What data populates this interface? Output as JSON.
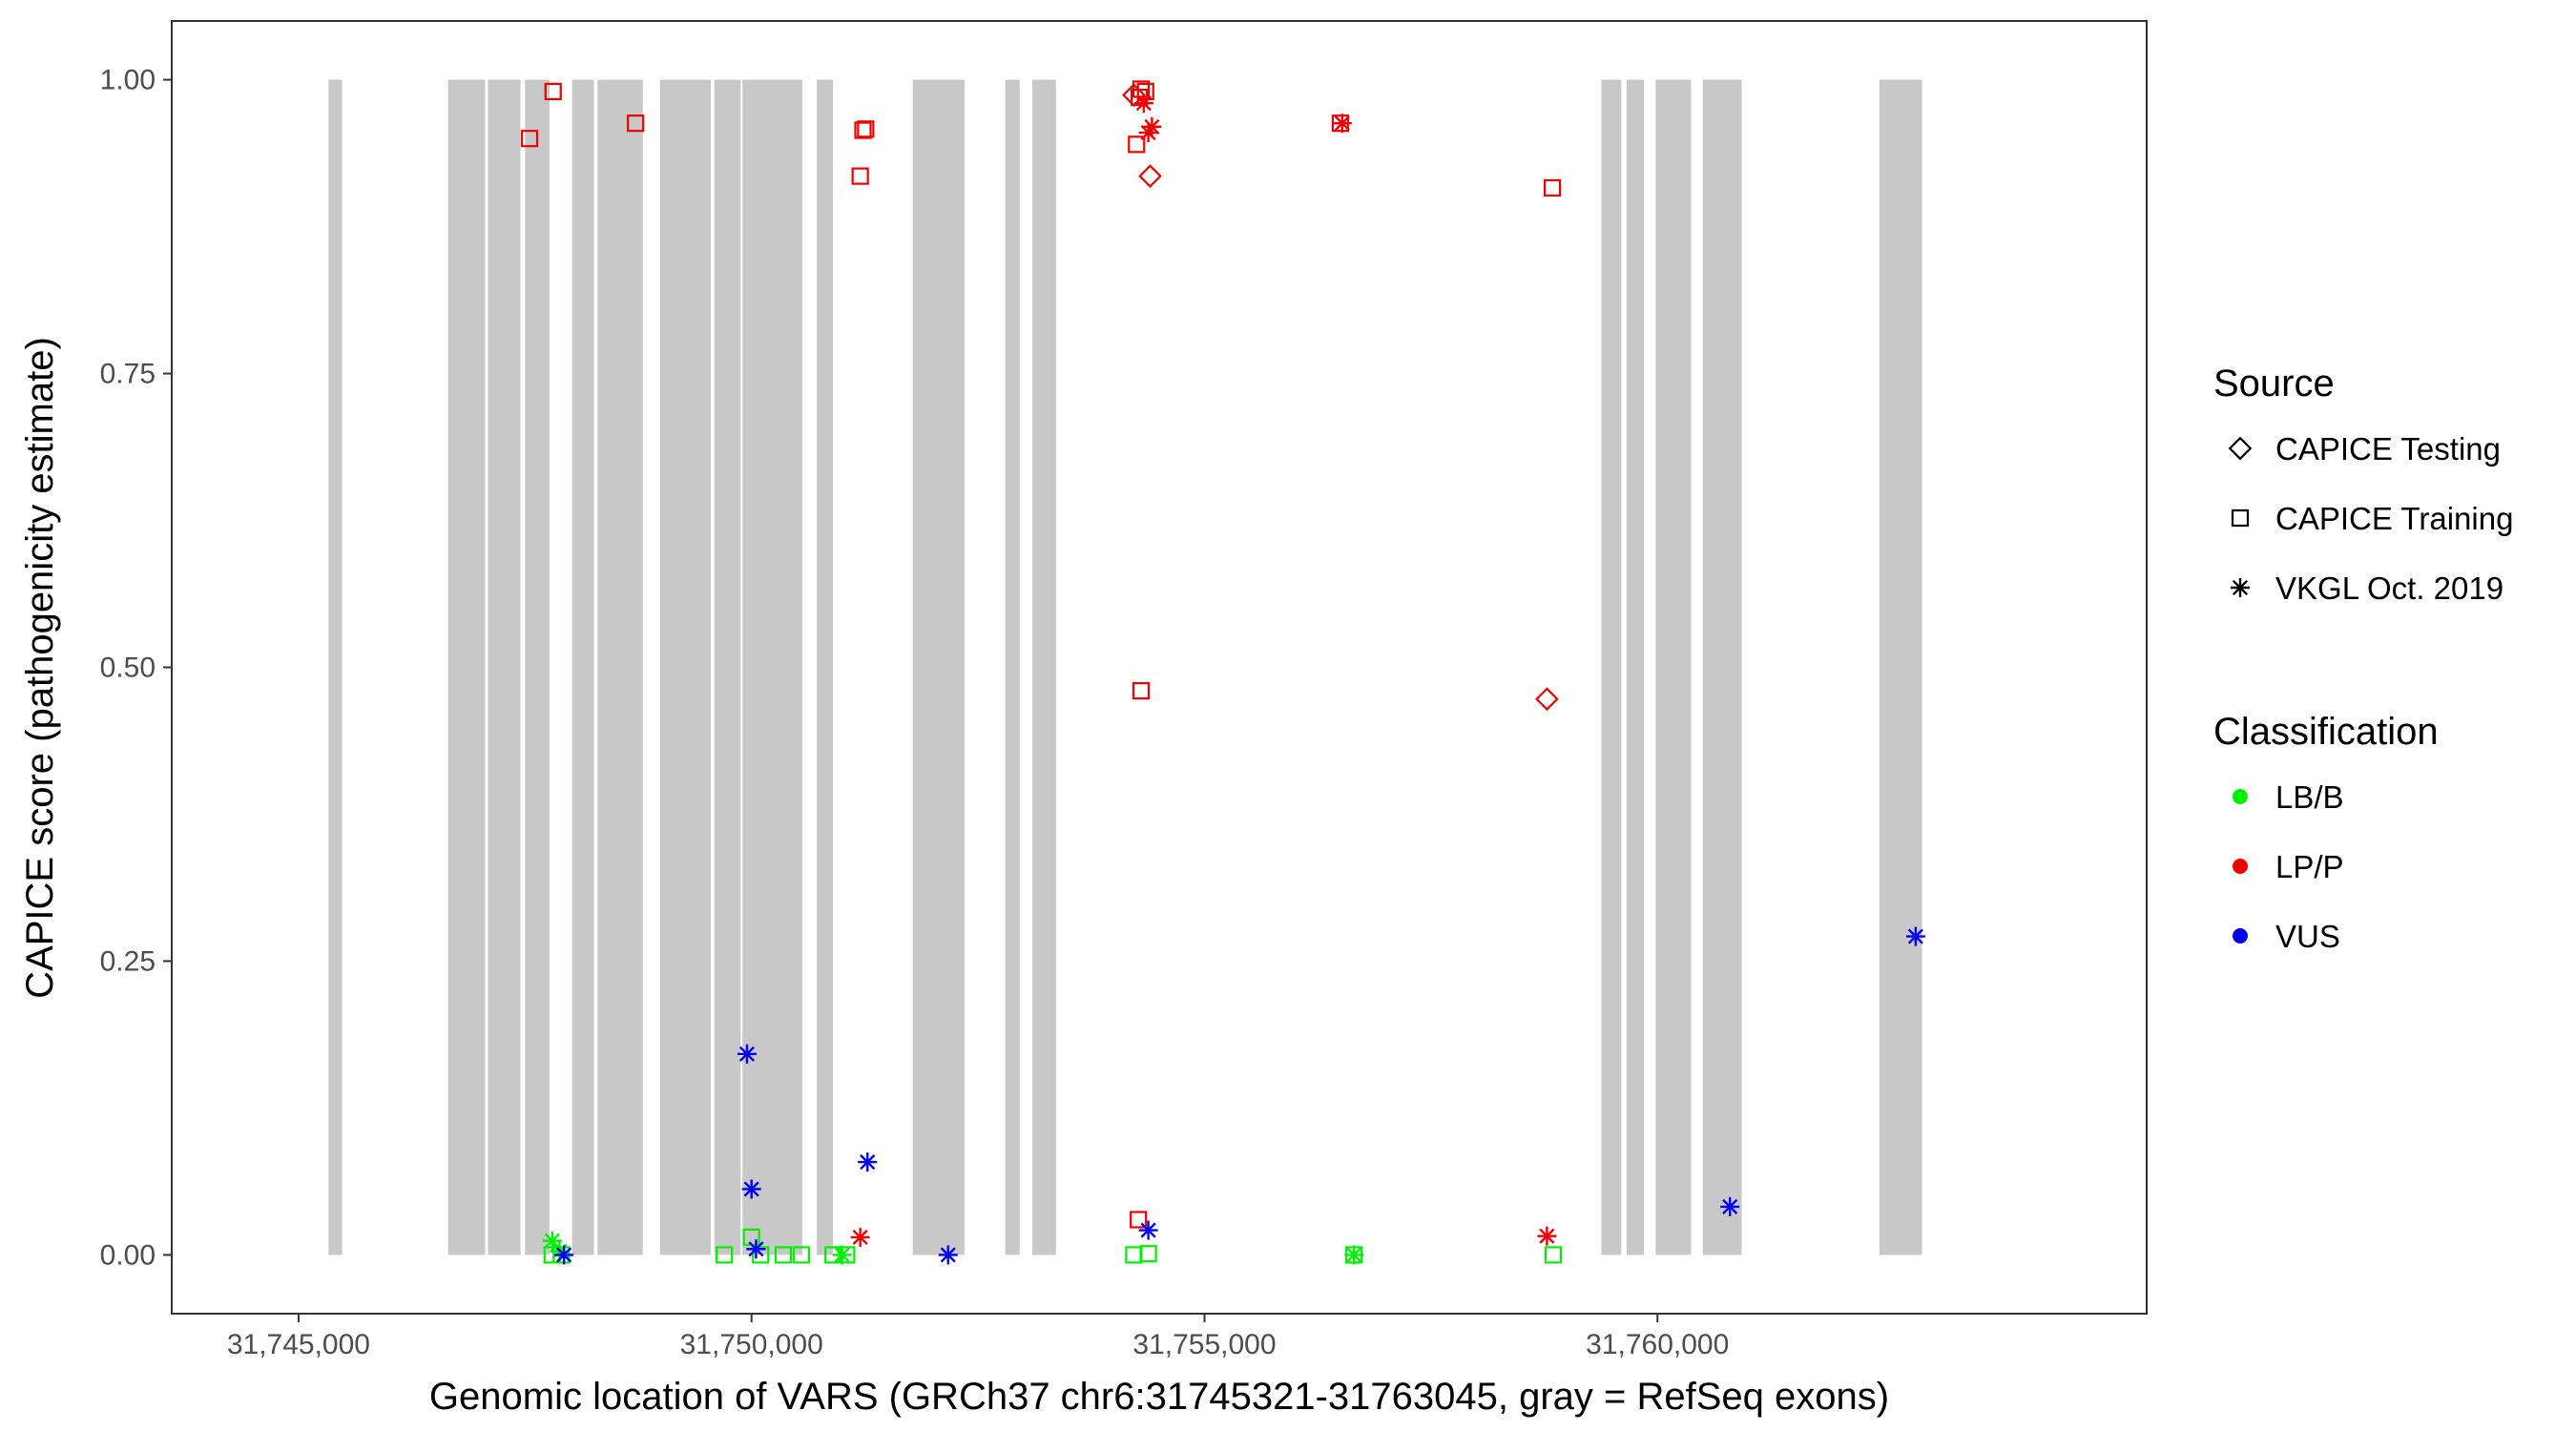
{
  "chart_data": {
    "type": "scatter",
    "title": "",
    "xlabel": "Genomic location of VARS (GRCh37 chr6:31745321-31763045, gray = RefSeq exons)",
    "ylabel": "CAPICE score (pathogenicity estimate)",
    "xlim": [
      31743600,
      31765400
    ],
    "ylim": [
      -0.05,
      1.05
    ],
    "x_ticks": [
      31745000,
      31750000,
      31755000,
      31760000
    ],
    "x_tick_labels": [
      "31,745,000",
      "31,750,000",
      "31,755,000",
      "31,760,000"
    ],
    "y_ticks": [
      0,
      0.25,
      0.5,
      0.75,
      1.0
    ],
    "y_tick_labels": [
      "0.00",
      "0.25",
      "0.50",
      "0.75",
      "1.00"
    ],
    "grid": false,
    "exons": [
      [
        31745330,
        31745480
      ],
      [
        31746650,
        31747060
      ],
      [
        31747090,
        31747450
      ],
      [
        31747500,
        31747770
      ],
      [
        31748020,
        31748260
      ],
      [
        31748300,
        31748800
      ],
      [
        31748990,
        31749550
      ],
      [
        31749590,
        31749880
      ],
      [
        31749900,
        31750560
      ],
      [
        31750720,
        31750900
      ],
      [
        31751780,
        31752350
      ],
      [
        31752800,
        31752960
      ],
      [
        31753100,
        31753360
      ],
      [
        31759380,
        31759600
      ],
      [
        31759660,
        31759850
      ],
      [
        31759980,
        31760370
      ],
      [
        31760500,
        31760930
      ],
      [
        31762450,
        31762920
      ]
    ],
    "legend": {
      "position": "right",
      "source_title": "Source",
      "source_entries": [
        {
          "label": "CAPICE Testing",
          "shape": "diamond"
        },
        {
          "label": "CAPICE Training",
          "shape": "square"
        },
        {
          "label": "VKGL Oct. 2019",
          "shape": "asterisk"
        }
      ],
      "classification_title": "Classification",
      "classification_entries": [
        {
          "label": "LB/B",
          "color": "#00ee00"
        },
        {
          "label": "LP/P",
          "color": "#ee0000"
        },
        {
          "label": "VUS",
          "color": "#0000ee"
        }
      ]
    },
    "series": [
      {
        "source": "CAPICE Training",
        "classification": "LP/P",
        "shape": "square",
        "color": "#ee0000",
        "points": [
          [
            31747550,
            0.95
          ],
          [
            31747810,
            0.99
          ],
          [
            31748720,
            0.963
          ],
          [
            31751200,
            0.918
          ],
          [
            31751230,
            0.957
          ],
          [
            31751260,
            0.958
          ],
          [
            31754250,
            0.945
          ],
          [
            31754280,
            0.985
          ],
          [
            31754300,
            0.992
          ],
          [
            31754350,
            0.99
          ],
          [
            31754300,
            0.48
          ],
          [
            31754270,
            0.03
          ],
          [
            31756500,
            0.963
          ],
          [
            31758840,
            0.908
          ]
        ]
      },
      {
        "source": "CAPICE Testing",
        "classification": "LP/P",
        "shape": "diamond",
        "color": "#ee0000",
        "points": [
          [
            31754220,
            0.987
          ],
          [
            31754400,
            0.918
          ],
          [
            31758780,
            0.473
          ]
        ]
      },
      {
        "source": "VKGL Oct. 2019",
        "classification": "LP/P",
        "shape": "asterisk",
        "color": "#ee0000",
        "points": [
          [
            31754330,
            0.98
          ],
          [
            31754380,
            0.955
          ],
          [
            31754420,
            0.96
          ],
          [
            31756520,
            0.963
          ],
          [
            31751200,
            0.015
          ],
          [
            31758780,
            0.016
          ]
        ]
      },
      {
        "source": "CAPICE Training",
        "classification": "LB/B",
        "shape": "square",
        "color": "#00ee00",
        "points": [
          [
            31747800,
            0.0
          ],
          [
            31747900,
            0.0
          ],
          [
            31749700,
            0.0
          ],
          [
            31750000,
            0.015
          ],
          [
            31750100,
            0.0
          ],
          [
            31750350,
            0.0
          ],
          [
            31750550,
            0.0
          ],
          [
            31750900,
            0.0
          ],
          [
            31751050,
            0.0
          ],
          [
            31754220,
            0.0
          ],
          [
            31754380,
            0.001
          ],
          [
            31756650,
            0.0
          ],
          [
            31758850,
            0.0
          ]
        ]
      },
      {
        "source": "VKGL Oct. 2019",
        "classification": "LB/B",
        "shape": "asterisk",
        "color": "#00ee00",
        "points": [
          [
            31747800,
            0.012
          ],
          [
            31747880,
            0.003
          ],
          [
            31751000,
            0.0
          ],
          [
            31756650,
            0.0
          ]
        ]
      },
      {
        "source": "VKGL Oct. 2019",
        "classification": "VUS",
        "shape": "asterisk",
        "color": "#0000ee",
        "points": [
          [
            31747930,
            0.0
          ],
          [
            31749950,
            0.171
          ],
          [
            31750000,
            0.056
          ],
          [
            31750050,
            0.005
          ],
          [
            31751280,
            0.079
          ],
          [
            31752170,
            0.0
          ],
          [
            31754380,
            0.021
          ],
          [
            31760800,
            0.041
          ],
          [
            31762850,
            0.271
          ]
        ]
      }
    ]
  }
}
